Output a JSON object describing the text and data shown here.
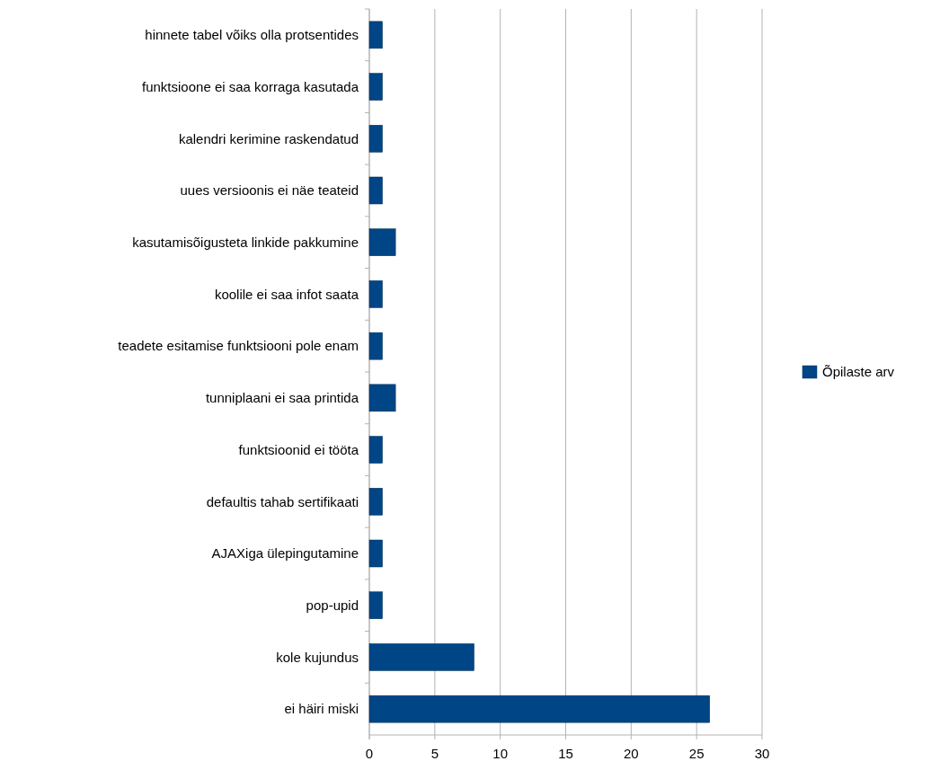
{
  "chart_data": {
    "type": "bar",
    "orientation": "horizontal",
    "categories": [
      "hinnete tabel võiks olla protsentides",
      "funktsioone ei saa korraga kasutada",
      "kalendri kerimine raskendatud",
      "uues versioonis ei näe teateid",
      "kasutamisõigusteta linkide pakkumine",
      "koolile ei saa infot saata",
      "teadete esitamise funktsiooni pole enam",
      "tunniplaani ei saa printida",
      "funktsioonid ei tööta",
      "defaultis tahab sertifikaati",
      "AJAXiga ülepingutamine",
      "pop-upid",
      "kole kujundus",
      "ei häiri miski"
    ],
    "series": [
      {
        "name": "Õpilaste arv",
        "color": "#004586",
        "values": [
          1,
          1,
          1,
          1,
          2,
          1,
          1,
          2,
          1,
          1,
          1,
          1,
          8,
          26
        ]
      }
    ],
    "xlim": [
      0,
      30
    ],
    "xticks": [
      0,
      5,
      10,
      15,
      20,
      25,
      30
    ],
    "grid": "x",
    "legend": "right"
  }
}
